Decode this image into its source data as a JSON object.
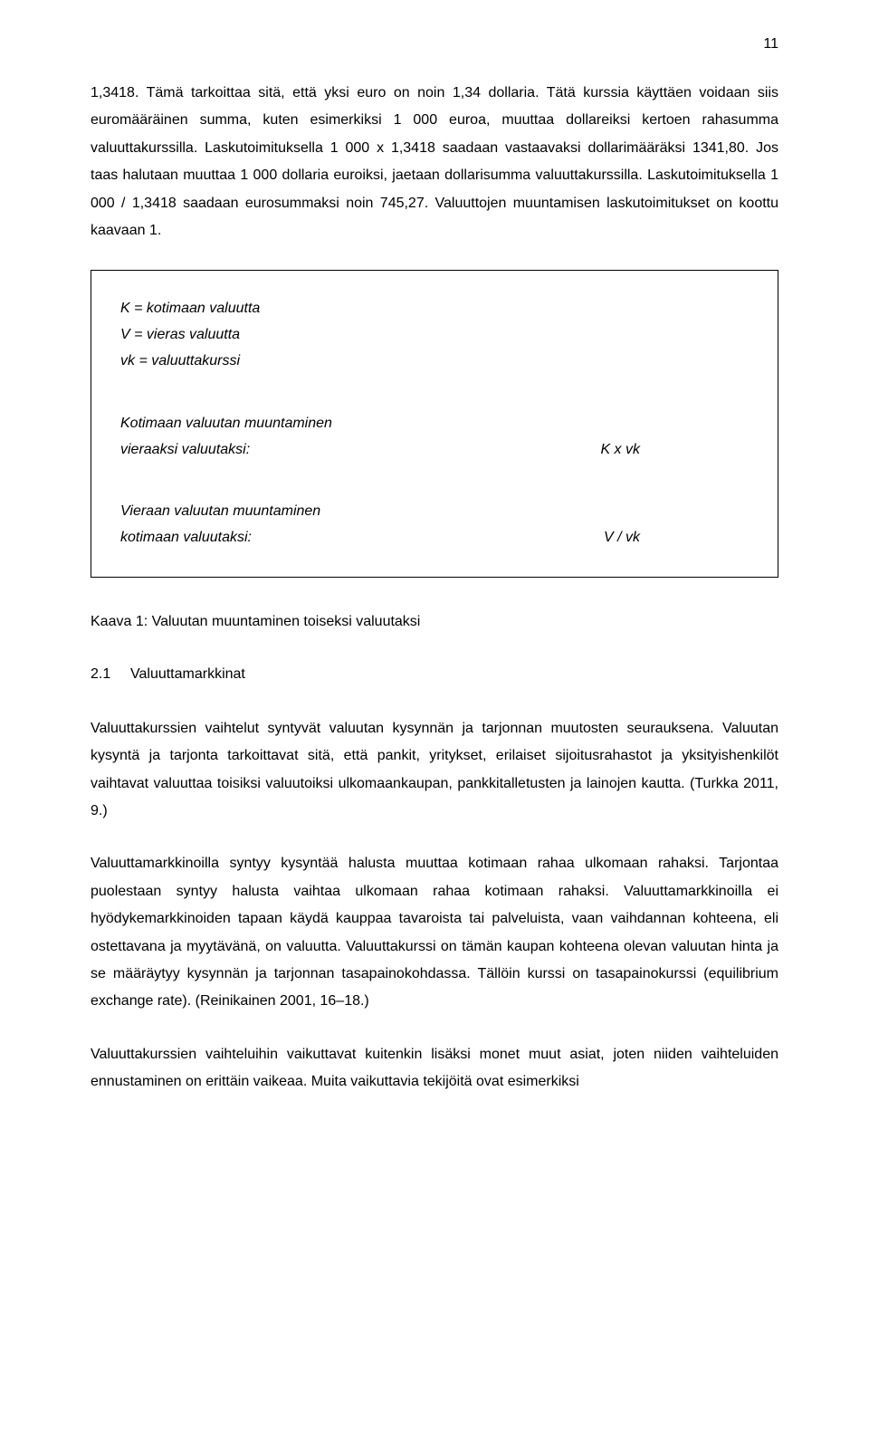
{
  "page_number": "11",
  "para1": "1,3418. Tämä tarkoittaa sitä, että yksi euro on noin 1,34 dollaria. Tätä kurssia käyttäen voidaan siis euromääräinen summa, kuten esimerkiksi 1 000 euroa, muuttaa dollareiksi kertoen rahasumma valuuttakurssilla. Laskutoimituksella 1 000 x 1,3418 saadaan vastaavaksi dollarimääräksi 1341,80. Jos taas halutaan muuttaa 1 000 dollaria euroiksi, jaetaan dollarisumma valuuttakurssilla. Laskutoimituksella 1 000 / 1,3418 saadaan eurosummaksi noin 745,27. Valuuttojen muuntamisen laskutoimitukset on koottu kaavaan 1.",
  "formula": {
    "defs": {
      "k": "K = kotimaan valuutta",
      "v": "V = vieras valuutta",
      "vk": "vk = valuuttakurssi"
    },
    "dom": {
      "title": "Kotimaan valuutan muuntaminen",
      "lhs": "vieraaksi valuutaksi:",
      "rhs": "K x vk"
    },
    "for": {
      "title": "Vieraan valuutan muuntaminen",
      "lhs": "kotimaan valuutaksi:",
      "rhs": "V / vk"
    }
  },
  "caption": "Kaava 1: Valuutan muuntaminen toiseksi valuutaksi",
  "section": {
    "num": "2.1",
    "title": "Valuuttamarkkinat"
  },
  "para2": "Valuuttakurssien vaihtelut syntyvät valuutan kysynnän ja tarjonnan muutosten seurauksena. Valuutan kysyntä ja tarjonta tarkoittavat sitä, että pankit, yritykset, erilaiset sijoitusrahastot ja yksityishenkilöt vaihtavat valuuttaa toisiksi valuutoiksi ulkomaankaupan, pankkitalletusten ja lainojen kautta. (Turkka 2011, 9.)",
  "para3": "Valuuttamarkkinoilla syntyy kysyntää halusta muuttaa kotimaan rahaa ulkomaan rahaksi. Tarjontaa puolestaan syntyy halusta vaihtaa ulkomaan rahaa kotimaan rahaksi. Valuuttamarkkinoilla ei hyödykemarkkinoiden tapaan käydä kauppaa tavaroista tai palveluista, vaan vaihdannan kohteena, eli ostettavana ja myytävänä, on valuutta. Valuuttakurssi on tämän kaupan kohteena olevan valuutan hinta ja se määräytyy kysynnän ja tarjonnan tasapainokohdassa. Tällöin kurssi on tasapainokurssi (equilibrium exchange rate). (Reinikainen 2001, 16–18.)",
  "para4": "Valuuttakurssien vaihteluihin vaikuttavat kuitenkin lisäksi monet muut asiat, joten niiden vaihteluiden ennustaminen on erittäin vaikeaa. Muita vaikuttavia tekijöitä ovat esimerkiksi"
}
